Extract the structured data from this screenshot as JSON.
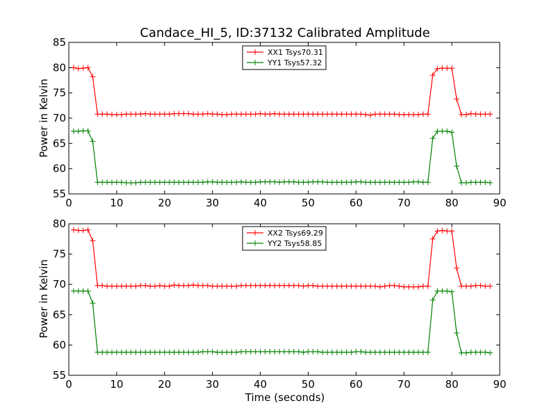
{
  "chart_data": {
    "title": "Candace_HI_5, ID:37132 Calibrated Amplitude",
    "xlabel": "Time (seconds)",
    "subplots": [
      {
        "type": "line",
        "ylabel": "Power in Kelvin",
        "xlim": [
          0,
          90
        ],
        "ylim": [
          55,
          85
        ],
        "xticks": [
          0,
          10,
          20,
          30,
          40,
          50,
          60,
          70,
          80,
          90
        ],
        "yticks": [
          55,
          60,
          65,
          70,
          75,
          80,
          85
        ],
        "legend_position": "top-center",
        "series": [
          {
            "name": "XX1 Tsys70.31",
            "color": "#ff0000",
            "x": [
              1,
              2,
              3,
              4,
              5,
              6,
              7,
              8,
              9,
              10,
              11,
              12,
              13,
              14,
              15,
              16,
              17,
              18,
              19,
              20,
              21,
              22,
              23,
              24,
              25,
              26,
              27,
              28,
              29,
              30,
              31,
              32,
              33,
              34,
              35,
              36,
              37,
              38,
              39,
              40,
              41,
              42,
              43,
              44,
              45,
              46,
              47,
              48,
              49,
              50,
              51,
              52,
              53,
              54,
              55,
              56,
              57,
              58,
              59,
              60,
              61,
              62,
              63,
              64,
              65,
              66,
              67,
              68,
              69,
              70,
              71,
              72,
              73,
              74,
              75,
              76,
              77,
              78,
              79,
              80,
              81,
              82,
              83,
              84,
              85,
              86,
              87,
              88
            ],
            "y": [
              80.0,
              79.8,
              79.9,
              80.0,
              78.2,
              70.8,
              70.8,
              70.8,
              70.7,
              70.7,
              70.7,
              70.8,
              70.8,
              70.8,
              70.8,
              70.9,
              70.8,
              70.8,
              70.8,
              70.8,
              70.8,
              70.9,
              70.9,
              70.9,
              70.9,
              70.8,
              70.8,
              70.8,
              70.9,
              70.8,
              70.8,
              70.7,
              70.7,
              70.8,
              70.8,
              70.8,
              70.8,
              70.8,
              70.8,
              70.9,
              70.8,
              70.8,
              70.9,
              70.8,
              70.8,
              70.8,
              70.8,
              70.8,
              70.8,
              70.8,
              70.8,
              70.8,
              70.8,
              70.8,
              70.8,
              70.8,
              70.8,
              70.8,
              70.8,
              70.8,
              70.8,
              70.7,
              70.6,
              70.8,
              70.8,
              70.8,
              70.8,
              70.8,
              70.7,
              70.7,
              70.7,
              70.7,
              70.7,
              70.8,
              70.8,
              78.5,
              79.8,
              79.9,
              79.9,
              79.9,
              73.8,
              70.7,
              70.7,
              70.9,
              70.8,
              70.8,
              70.8,
              70.8
            ]
          },
          {
            "name": "YY1 Tsys57.32",
            "color": "#008000",
            "x": [
              1,
              2,
              3,
              4,
              5,
              6,
              7,
              8,
              9,
              10,
              11,
              12,
              13,
              14,
              15,
              16,
              17,
              18,
              19,
              20,
              21,
              22,
              23,
              24,
              25,
              26,
              27,
              28,
              29,
              30,
              31,
              32,
              33,
              34,
              35,
              36,
              37,
              38,
              39,
              40,
              41,
              42,
              43,
              44,
              45,
              46,
              47,
              48,
              49,
              50,
              51,
              52,
              53,
              54,
              55,
              56,
              57,
              58,
              59,
              60,
              61,
              62,
              63,
              64,
              65,
              66,
              67,
              68,
              69,
              70,
              71,
              72,
              73,
              74,
              75,
              76,
              77,
              78,
              79,
              80,
              81,
              82,
              83,
              84,
              85,
              86,
              87,
              88
            ],
            "y": [
              67.4,
              67.4,
              67.5,
              67.5,
              65.4,
              57.3,
              57.3,
              57.3,
              57.3,
              57.3,
              57.3,
              57.2,
              57.2,
              57.2,
              57.3,
              57.3,
              57.3,
              57.3,
              57.3,
              57.3,
              57.3,
              57.3,
              57.3,
              57.3,
              57.3,
              57.3,
              57.3,
              57.3,
              57.4,
              57.4,
              57.3,
              57.3,
              57.3,
              57.3,
              57.3,
              57.4,
              57.3,
              57.3,
              57.3,
              57.4,
              57.4,
              57.4,
              57.4,
              57.3,
              57.4,
              57.4,
              57.4,
              57.3,
              57.3,
              57.3,
              57.4,
              57.4,
              57.4,
              57.3,
              57.3,
              57.3,
              57.3,
              57.3,
              57.3,
              57.4,
              57.4,
              57.3,
              57.3,
              57.3,
              57.3,
              57.3,
              57.3,
              57.3,
              57.3,
              57.3,
              57.3,
              57.4,
              57.4,
              57.3,
              57.3,
              66.0,
              67.4,
              67.4,
              67.4,
              67.2,
              60.5,
              57.2,
              57.2,
              57.3,
              57.3,
              57.3,
              57.3,
              57.2
            ]
          }
        ]
      },
      {
        "type": "line",
        "ylabel": "Power in Kelvin",
        "xlim": [
          0,
          90
        ],
        "ylim": [
          55,
          80
        ],
        "xticks": [
          0,
          10,
          20,
          30,
          40,
          50,
          60,
          70,
          80,
          90
        ],
        "yticks": [
          55,
          60,
          65,
          70,
          75,
          80
        ],
        "legend_position": "top-center",
        "series": [
          {
            "name": "XX2 Tsys69.29",
            "color": "#ff0000",
            "x": [
              1,
              2,
              3,
              4,
              5,
              6,
              7,
              8,
              9,
              10,
              11,
              12,
              13,
              14,
              15,
              16,
              17,
              18,
              19,
              20,
              21,
              22,
              23,
              24,
              25,
              26,
              27,
              28,
              29,
              30,
              31,
              32,
              33,
              34,
              35,
              36,
              37,
              38,
              39,
              40,
              41,
              42,
              43,
              44,
              45,
              46,
              47,
              48,
              49,
              50,
              51,
              52,
              53,
              54,
              55,
              56,
              57,
              58,
              59,
              60,
              61,
              62,
              63,
              64,
              65,
              66,
              67,
              68,
              69,
              70,
              71,
              72,
              73,
              74,
              75,
              76,
              77,
              78,
              79,
              80,
              81,
              82,
              83,
              84,
              85,
              86,
              87,
              88
            ],
            "y": [
              79.0,
              78.9,
              78.9,
              79.0,
              77.2,
              69.8,
              69.8,
              69.7,
              69.7,
              69.7,
              69.7,
              69.7,
              69.7,
              69.7,
              69.8,
              69.8,
              69.7,
              69.7,
              69.8,
              69.7,
              69.7,
              69.9,
              69.8,
              69.8,
              69.8,
              69.9,
              69.8,
              69.8,
              69.8,
              69.7,
              69.7,
              69.7,
              69.7,
              69.7,
              69.7,
              69.8,
              69.8,
              69.8,
              69.8,
              69.8,
              69.8,
              69.8,
              69.8,
              69.8,
              69.8,
              69.8,
              69.8,
              69.8,
              69.7,
              69.8,
              69.8,
              69.7,
              69.7,
              69.7,
              69.7,
              69.7,
              69.7,
              69.7,
              69.7,
              69.7,
              69.7,
              69.7,
              69.7,
              69.7,
              69.6,
              69.7,
              69.8,
              69.8,
              69.7,
              69.6,
              69.6,
              69.6,
              69.6,
              69.7,
              69.7,
              77.5,
              78.8,
              78.9,
              78.8,
              78.8,
              72.7,
              69.7,
              69.7,
              69.7,
              69.8,
              69.8,
              69.7,
              69.7
            ]
          },
          {
            "name": "YY2 Tsys58.85",
            "color": "#008000",
            "x": [
              1,
              2,
              3,
              4,
              5,
              6,
              7,
              8,
              9,
              10,
              11,
              12,
              13,
              14,
              15,
              16,
              17,
              18,
              19,
              20,
              21,
              22,
              23,
              24,
              25,
              26,
              27,
              28,
              29,
              30,
              31,
              32,
              33,
              34,
              35,
              36,
              37,
              38,
              39,
              40,
              41,
              42,
              43,
              44,
              45,
              46,
              47,
              48,
              49,
              50,
              51,
              52,
              53,
              54,
              55,
              56,
              57,
              58,
              59,
              60,
              61,
              62,
              63,
              64,
              65,
              66,
              67,
              68,
              69,
              70,
              71,
              72,
              73,
              74,
              75,
              76,
              77,
              78,
              79,
              80,
              81,
              82,
              83,
              84,
              85,
              86,
              87,
              88
            ],
            "y": [
              68.9,
              68.9,
              68.9,
              68.9,
              66.9,
              58.8,
              58.8,
              58.8,
              58.8,
              58.8,
              58.8,
              58.8,
              58.8,
              58.8,
              58.8,
              58.8,
              58.8,
              58.8,
              58.8,
              58.8,
              58.8,
              58.8,
              58.8,
              58.8,
              58.8,
              58.8,
              58.8,
              58.9,
              58.9,
              58.9,
              58.8,
              58.8,
              58.8,
              58.8,
              58.8,
              58.9,
              58.9,
              58.9,
              58.9,
              58.9,
              58.9,
              58.9,
              58.9,
              58.9,
              58.9,
              58.9,
              58.9,
              58.9,
              58.8,
              58.9,
              58.9,
              58.9,
              58.8,
              58.8,
              58.8,
              58.8,
              58.8,
              58.8,
              58.8,
              58.9,
              58.9,
              58.8,
              58.8,
              58.8,
              58.8,
              58.8,
              58.8,
              58.8,
              58.8,
              58.8,
              58.8,
              58.8,
              58.8,
              58.8,
              58.8,
              67.4,
              68.9,
              68.9,
              68.9,
              68.8,
              62.0,
              58.7,
              58.7,
              58.8,
              58.8,
              58.8,
              58.8,
              58.7
            ]
          }
        ]
      }
    ]
  }
}
